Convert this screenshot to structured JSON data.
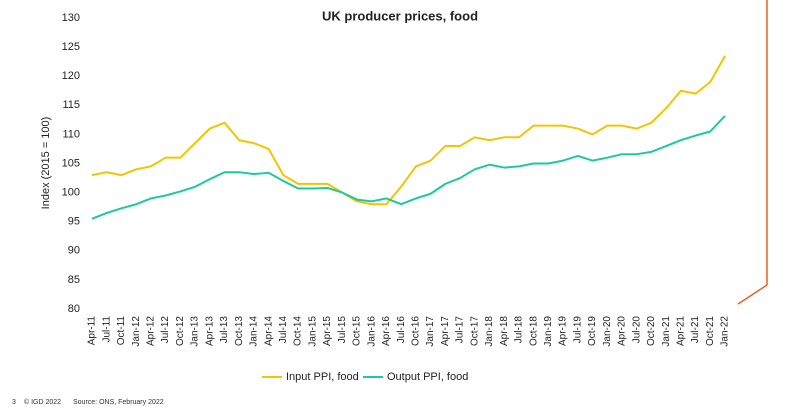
{
  "chart_data": {
    "type": "line",
    "title": "UK producer prices, food",
    "y_label": "Index (2015 = 100)",
    "categories": [
      "Apr-11",
      "Jul-11",
      "Oct-11",
      "Jan-12",
      "Apr-12",
      "Jul-12",
      "Oct-12",
      "Jan-13",
      "Apr-13",
      "Jul-13",
      "Oct-13",
      "Jan-14",
      "Apr-14",
      "Jul-14",
      "Oct-14",
      "Jan-15",
      "Apr-15",
      "Jul-15",
      "Oct-15",
      "Jan-16",
      "Apr-16",
      "Jul-16",
      "Oct-16",
      "Jan-17",
      "Apr-17",
      "Jul-17",
      "Oct-17",
      "Jan-18",
      "Apr-18",
      "Jul-18",
      "Oct-18",
      "Jan-19",
      "Apr-19",
      "Jul-19",
      "Oct-19",
      "Jan-20",
      "Apr-20",
      "Jul-20",
      "Oct-20",
      "Jan-21",
      "Apr-21",
      "Jul-21",
      "Oct-21",
      "Jan-22"
    ],
    "series": [
      {
        "name": "Input PPI, food",
        "color": "#f2c500",
        "values": [
          103,
          103.5,
          103,
          104,
          104.5,
          106,
          106,
          108.5,
          111,
          112,
          109,
          108.5,
          107.5,
          103,
          101.5,
          101.5,
          101.5,
          100,
          98.5,
          98,
          98,
          101,
          104.5,
          105.5,
          108,
          108,
          109.5,
          109,
          109.5,
          109.5,
          111.5,
          111.5,
          111.5,
          111,
          110,
          111.5,
          111.5,
          111,
          112,
          114.5,
          117.5,
          117,
          119,
          123.5
        ]
      },
      {
        "name": "Output PPI, food",
        "color": "#1ec99a",
        "values": [
          95.5,
          96.5,
          97.3,
          98,
          99,
          99.5,
          100.2,
          101,
          102.3,
          103.5,
          103.5,
          103.2,
          103.4,
          102,
          100.7,
          100.7,
          100.8,
          100,
          98.8,
          98.5,
          99,
          98,
          99,
          99.8,
          101.5,
          102.5,
          104,
          104.8,
          104.3,
          104.5,
          105,
          105,
          105.5,
          106.3,
          105.5,
          106,
          106.6,
          106.6,
          107,
          108,
          109,
          109.8,
          110.5,
          113.2
        ]
      }
    ],
    "ylim": [
      80,
      130
    ],
    "yticks": [
      80,
      85,
      90,
      95,
      100,
      105,
      110,
      115,
      120,
      125,
      130
    ],
    "grid": false
  },
  "page_number": "3",
  "copyright": "© IGD 2022",
  "source": "Source: ONS, February 2022"
}
